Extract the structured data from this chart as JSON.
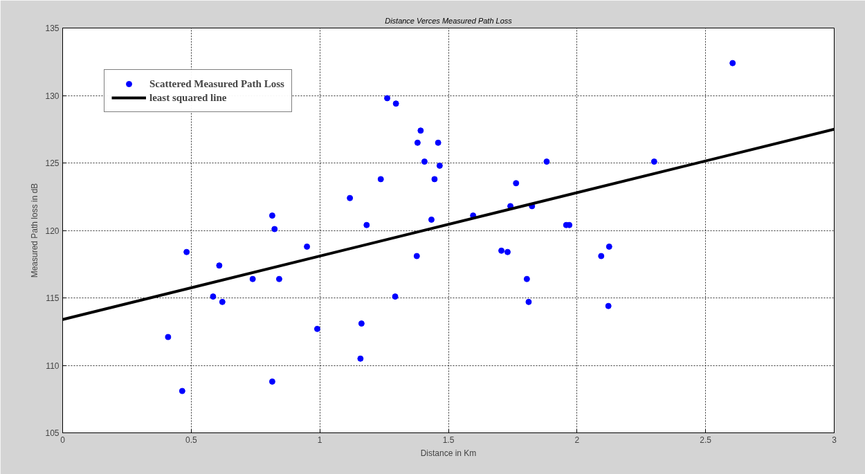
{
  "chart_data": {
    "type": "scatter",
    "title": "Distance Verces Measured Path Loss",
    "xlabel": "Distance in Km",
    "ylabel": "Measured Path loss in dB",
    "xlim": [
      0,
      3
    ],
    "ylim": [
      105,
      135
    ],
    "xticks": [
      0,
      0.5,
      1,
      1.5,
      2,
      2.5,
      3
    ],
    "yticks": [
      105,
      110,
      115,
      120,
      125,
      130,
      135
    ],
    "grid": true,
    "legend": "top left",
    "series": [
      {
        "name": "Scattered Measured Path Loss",
        "marker": "circle",
        "color": "#0000ff",
        "x": [
          0.41,
          0.465,
          0.482,
          0.585,
          0.609,
          0.621,
          0.739,
          0.815,
          0.824,
          0.815,
          0.842,
          0.95,
          0.99,
          1.162,
          1.158,
          1.117,
          1.182,
          1.237,
          1.262,
          1.296,
          1.293,
          1.377,
          1.38,
          1.392,
          1.407,
          1.446,
          1.434,
          1.46,
          1.466,
          1.596,
          1.706,
          1.73,
          1.741,
          1.763,
          1.805,
          1.812,
          1.825,
          1.882,
          1.958,
          1.97,
          2.094,
          2.125,
          2.122,
          2.3,
          2.605
        ],
        "values": [
          112.1,
          108.1,
          118.4,
          115.1,
          117.4,
          114.7,
          116.4,
          121.1,
          120.1,
          108.8,
          116.4,
          118.8,
          112.7,
          113.1,
          110.5,
          122.4,
          120.4,
          123.8,
          129.8,
          129.4,
          115.1,
          118.1,
          126.5,
          127.4,
          125.1,
          123.8,
          120.8,
          126.5,
          124.8,
          121.1,
          118.5,
          118.4,
          121.8,
          123.5,
          116.4,
          114.7,
          121.8,
          125.1,
          120.4,
          120.4,
          118.1,
          118.8,
          114.4,
          125.1,
          132.4
        ]
      },
      {
        "name": "least squared line",
        "type": "line",
        "line_style": "solid",
        "color": "#000000",
        "x": [
          0,
          3
        ],
        "values": [
          113.4,
          127.5
        ]
      }
    ]
  }
}
